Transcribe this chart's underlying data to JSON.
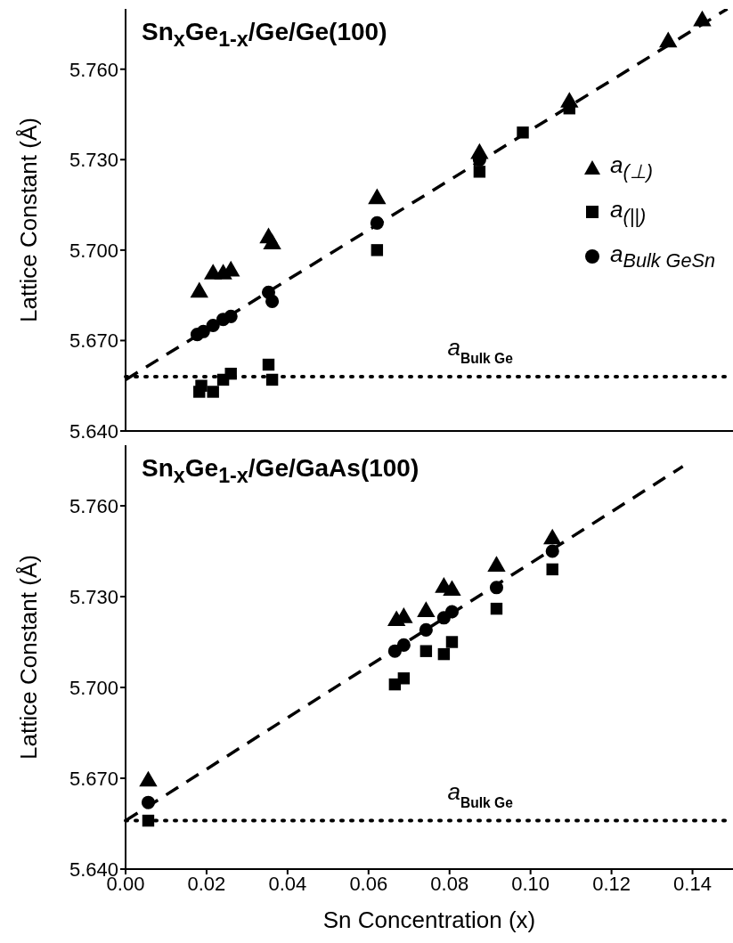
{
  "chart_data": [
    {
      "type": "scatter",
      "title": "Sn$_{x}$Ge$_{1-x}$/Ge/Ge(100)",
      "ylabel": "Lattice Constant (Å)",
      "xlim": [
        0,
        0.15
      ],
      "xticks": [
        {
          "value": 0,
          "label": null
        },
        {
          "value": 0.02,
          "label": null
        },
        {
          "value": 0.04,
          "label": null
        },
        {
          "value": 0.06,
          "label": null
        },
        {
          "value": 0.08,
          "label": null
        },
        {
          "value": 0.1,
          "label": null
        },
        {
          "value": 0.12,
          "label": null
        },
        {
          "value": 0.14,
          "label": null
        }
      ],
      "ylim": [
        5.64,
        5.78
      ],
      "yticks": [
        {
          "value": 5.64,
          "label": "5.640"
        },
        {
          "value": 5.67,
          "label": "5.670"
        },
        {
          "value": 5.7,
          "label": "5.700"
        },
        {
          "value": 5.73,
          "label": "5.730"
        },
        {
          "value": 5.76,
          "label": "5.760"
        }
      ],
      "tick_labels": "y",
      "legend": "right",
      "ref_lines": [
        {
          "axis": "y",
          "value": 5.658,
          "label": "a$_{Bulk Ge}$",
          "line_style": "dotted",
          "color": "#000000"
        }
      ],
      "series": [
        {
          "name": "a$_{(⊥)}$",
          "color": "#000000",
          "marker": "triangle",
          "x": [
            0.0182,
            0.0216,
            0.0241,
            0.026,
            0.0353,
            0.0362,
            0.0621,
            0.0874,
            0.1096,
            0.134,
            0.1424
          ],
          "values": [
            5.686,
            5.692,
            5.692,
            5.693,
            5.704,
            5.702,
            5.717,
            5.732,
            5.749,
            5.769,
            5.776
          ]
        },
        {
          "name": "a$_{(||)}$",
          "color": "#000000",
          "marker": "square",
          "x": [
            0.0182,
            0.0187,
            0.0216,
            0.0241,
            0.026,
            0.0353,
            0.0362,
            0.0621,
            0.0874,
            0.0981,
            0.1096
          ],
          "values": [
            5.653,
            5.655,
            5.653,
            5.657,
            5.659,
            5.662,
            5.657,
            5.7,
            5.726,
            5.739,
            5.747
          ]
        },
        {
          "name": "a$_{Bulk GeSn}$",
          "color": "#000000",
          "marker": "circle",
          "x": [
            0.0177,
            0.0192,
            0.0216,
            0.0241,
            0.026,
            0.0353,
            0.0362,
            0.0621,
            0.0874
          ],
          "values": [
            5.672,
            5.673,
            5.675,
            5.677,
            5.678,
            5.686,
            5.683,
            5.709,
            5.73
          ]
        },
        {
          "type": "line",
          "color": "#000000",
          "line_style": "dashed",
          "marker": "none",
          "x": [
            0,
            0.1486
          ],
          "values": [
            5.657,
            5.78
          ]
        }
      ]
    },
    {
      "type": "scatter",
      "title": "Sn$_{x}$Ge$_{1-x}$/Ge/GaAs(100)",
      "xlabel": "Sn Concentration (x)",
      "ylabel": "Lattice Constant (Å)",
      "xlim": [
        0,
        0.15
      ],
      "xticks": [
        {
          "value": 0,
          "label": "0.00"
        },
        {
          "value": 0.02,
          "label": "0.02"
        },
        {
          "value": 0.04,
          "label": "0.04"
        },
        {
          "value": 0.06,
          "label": "0.06"
        },
        {
          "value": 0.08,
          "label": "0.08"
        },
        {
          "value": 0.1,
          "label": "0.10"
        },
        {
          "value": 0.12,
          "label": "0.12"
        },
        {
          "value": 0.14,
          "label": "0.14"
        }
      ],
      "ylim": [
        5.64,
        5.78
      ],
      "yticks": [
        {
          "value": 5.64,
          "label": "5.640"
        },
        {
          "value": 5.67,
          "label": "5.670"
        },
        {
          "value": 5.7,
          "label": "5.700"
        },
        {
          "value": 5.73,
          "label": "5.730"
        },
        {
          "value": 5.76,
          "label": "5.760"
        }
      ],
      "ref_lines": [
        {
          "axis": "y",
          "value": 5.656,
          "label": "a$_{Bulk Ge}$",
          "line_style": "dotted",
          "color": "#000000"
        }
      ],
      "series": [
        {
          "color": "#000000",
          "marker": "triangle",
          "x": [
            0.0056,
            0.0669,
            0.0687,
            0.0742,
            0.0786,
            0.0806,
            0.0916,
            0.1054
          ],
          "values": [
            5.669,
            5.722,
            5.723,
            5.725,
            5.733,
            5.732,
            5.74,
            5.749
          ]
        },
        {
          "color": "#000000",
          "marker": "square",
          "x": [
            0.0056,
            0.0665,
            0.0687,
            0.0742,
            0.0786,
            0.0806,
            0.0916,
            0.1054
          ],
          "values": [
            5.656,
            5.701,
            5.703,
            5.712,
            5.711,
            5.715,
            5.726,
            5.739
          ]
        },
        {
          "color": "#000000",
          "marker": "circle",
          "x": [
            0.0056,
            0.0665,
            0.0687,
            0.0742,
            0.0786,
            0.0806,
            0.0916,
            0.1054
          ],
          "values": [
            5.662,
            5.712,
            5.714,
            5.719,
            5.723,
            5.725,
            5.733,
            5.745
          ]
        },
        {
          "type": "line",
          "color": "#000000",
          "line_style": "dashed",
          "marker": "none",
          "x": [
            0,
            0.1376
          ],
          "values": [
            5.656,
            5.773
          ]
        }
      ]
    }
  ]
}
